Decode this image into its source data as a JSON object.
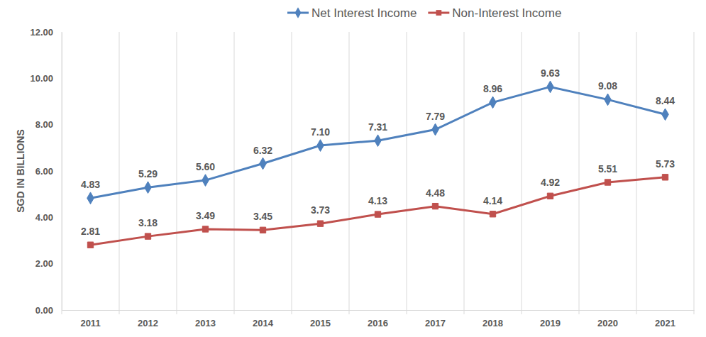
{
  "chart_data": {
    "type": "line",
    "categories": [
      "2011",
      "2012",
      "2013",
      "2014",
      "2015",
      "2016",
      "2017",
      "2018",
      "2019",
      "2020",
      "2021"
    ],
    "ylabel": "SGD IN BILLIONS",
    "ylim": [
      0,
      12
    ],
    "yticks": [
      {
        "value": 0,
        "label": "0.00"
      },
      {
        "value": 2,
        "label": "2.00"
      },
      {
        "value": 4,
        "label": "4.00"
      },
      {
        "value": 6,
        "label": "6.00"
      },
      {
        "value": 8,
        "label": "8.00"
      },
      {
        "value": 10,
        "label": "10.00"
      },
      {
        "value": 12,
        "label": "12.00"
      }
    ],
    "grid": true,
    "legend": "top",
    "data_labels": true,
    "series": [
      {
        "name": "Net Interest Income",
        "color": "#4f81bd",
        "marker": "diamond",
        "line_style": "solid",
        "values": [
          4.83,
          5.29,
          5.6,
          6.32,
          7.1,
          7.31,
          7.79,
          8.96,
          9.63,
          9.08,
          8.44
        ],
        "value_labels": [
          "4.83",
          "5.29",
          "5.60",
          "6.32",
          "7.10",
          "7.31",
          "7.79",
          "8.96",
          "9.63",
          "9.08",
          "8.44"
        ]
      },
      {
        "name": "Non-Interest Income",
        "color": "#c0504d",
        "marker": "square",
        "line_style": "solid",
        "values": [
          2.81,
          3.18,
          3.49,
          3.45,
          3.73,
          4.13,
          4.48,
          4.14,
          4.92,
          5.51,
          5.73
        ],
        "value_labels": [
          "2.81",
          "3.18",
          "3.49",
          "3.45",
          "3.73",
          "4.13",
          "4.48",
          "4.14",
          "4.92",
          "5.51",
          "5.73"
        ]
      }
    ]
  }
}
